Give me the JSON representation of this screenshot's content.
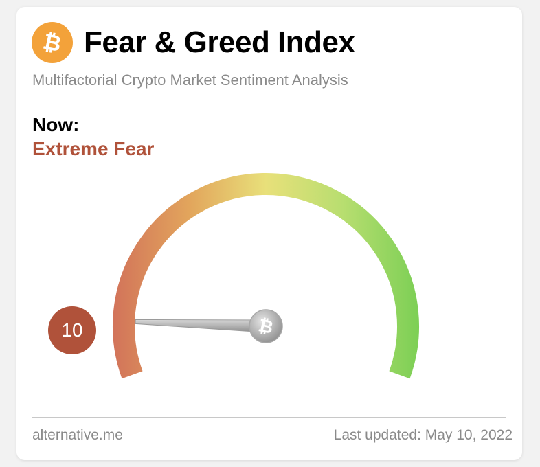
{
  "header": {
    "title": "Fear & Greed Index",
    "subtitle": "Multifactorial Crypto Market Sentiment Analysis",
    "logo_icon": "bitcoin-icon",
    "logo_color": "#f3a23a"
  },
  "now": {
    "label": "Now:",
    "status": "Extreme Fear",
    "status_color": "#b0523a",
    "value": "10"
  },
  "gauge": {
    "min": 0,
    "max": 100,
    "value": 10,
    "hub_icon": "bitcoin-icon",
    "colors": [
      "#d2735a",
      "#e2a55c",
      "#e8e07a",
      "#b8de70",
      "#7ccf55"
    ]
  },
  "footer": {
    "source": "alternative.me",
    "updated": "Last updated: May 10, 2022"
  }
}
